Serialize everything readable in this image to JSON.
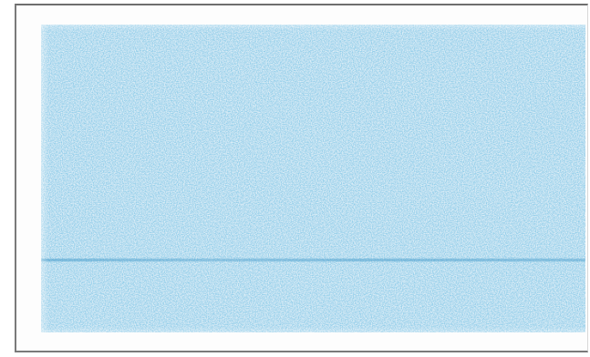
{
  "colors": {
    "paper": "#ffffff",
    "frame_border": "#7a7a7a",
    "ink_light": "#bfe6f7",
    "ink_mid": "#8fcde9",
    "ink_dark": "#5fb3dc",
    "streak": "#3c96c8"
  }
}
